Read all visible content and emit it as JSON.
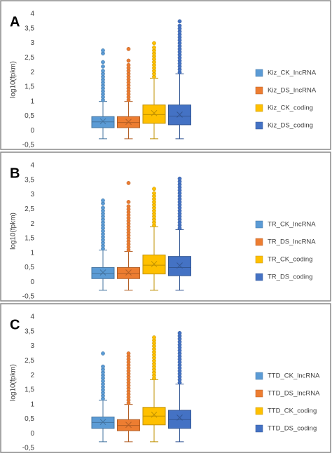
{
  "chart_data": [
    {
      "type": "box",
      "label": "A",
      "y_label": "log10(fpkm)",
      "ylim": [
        -0.5,
        4
      ],
      "yticks": [
        {
          "value": -0.5,
          "label": "-0,5"
        },
        0,
        {
          "value": 0.5,
          "label": "0,5"
        },
        1,
        {
          "value": 1.5,
          "label": "1,5"
        },
        2,
        {
          "value": 2.5,
          "label": "2,5"
        },
        3,
        {
          "value": 3.5,
          "label": "3,5"
        },
        4
      ],
      "grid": false,
      "legend": "right",
      "series": [
        {
          "name": "Kiz_CK_lncRNA",
          "color": "#5b9bd5",
          "min": -0.28,
          "q1": 0.1,
          "median": 0.3,
          "q3": 0.48,
          "max": 1.0,
          "mean": 0.32,
          "outliers": [
            1.05,
            1.15,
            1.25,
            1.35,
            1.45,
            1.55,
            1.65,
            1.75,
            1.85,
            1.95,
            2.05,
            2.2,
            2.35,
            2.65,
            2.75
          ]
        },
        {
          "name": "Kiz_DS_lncRNA",
          "color": "#ed7d31",
          "min": -0.28,
          "q1": 0.1,
          "median": 0.28,
          "q3": 0.48,
          "max": 1.0,
          "mean": 0.3,
          "outliers": [
            1.05,
            1.15,
            1.25,
            1.35,
            1.45,
            1.55,
            1.65,
            1.75,
            1.85,
            1.95,
            2.05,
            2.15,
            2.25,
            2.4,
            2.8
          ]
        },
        {
          "name": "Kiz_CK_coding",
          "color": "#ffc000",
          "min": -0.28,
          "q1": 0.25,
          "median": 0.55,
          "q3": 0.88,
          "max": 1.8,
          "mean": 0.6,
          "outliers": [
            1.85,
            1.95,
            2.05,
            2.15,
            2.25,
            2.35,
            2.45,
            2.55,
            2.65,
            2.75,
            2.85,
            3.0
          ]
        },
        {
          "name": "Kiz_DS_coding",
          "color": "#4472c4",
          "min": -0.28,
          "q1": 0.2,
          "median": 0.5,
          "q3": 0.88,
          "max": 1.95,
          "mean": 0.55,
          "outliers": [
            2.0,
            2.1,
            2.2,
            2.3,
            2.4,
            2.5,
            2.6,
            2.7,
            2.8,
            2.9,
            3.0,
            3.1,
            3.2,
            3.3,
            3.4,
            3.5,
            3.6,
            3.75
          ]
        }
      ]
    },
    {
      "type": "box",
      "label": "B",
      "y_label": "log10(fpkm)",
      "ylim": [
        -0.5,
        4
      ],
      "yticks": [
        {
          "value": -0.5,
          "label": "-0,5"
        },
        0,
        {
          "value": 0.5,
          "label": "0,5"
        },
        1,
        {
          "value": 1.5,
          "label": "1,5"
        },
        2,
        {
          "value": 2.5,
          "label": "2,5"
        },
        3,
        {
          "value": 3.5,
          "label": "3,5"
        },
        4
      ],
      "grid": false,
      "legend": "right",
      "series": [
        {
          "name": "TR_CK_lncRNA",
          "color": "#5b9bd5",
          "min": -0.28,
          "q1": 0.12,
          "median": 0.3,
          "q3": 0.5,
          "max": 1.1,
          "mean": 0.33,
          "outliers": [
            1.15,
            1.25,
            1.35,
            1.45,
            1.55,
            1.65,
            1.75,
            1.85,
            1.95,
            2.05,
            2.15,
            2.25,
            2.35,
            2.45,
            2.55,
            2.7,
            2.8
          ]
        },
        {
          "name": "TR_DS_lncRNA",
          "color": "#ed7d31",
          "min": -0.28,
          "q1": 0.12,
          "median": 0.3,
          "q3": 0.5,
          "max": 1.05,
          "mean": 0.33,
          "outliers": [
            1.1,
            1.2,
            1.3,
            1.4,
            1.5,
            1.6,
            1.7,
            1.8,
            1.9,
            2.0,
            2.1,
            2.2,
            2.3,
            2.4,
            2.5,
            2.6,
            2.75,
            3.4
          ]
        },
        {
          "name": "TR_CK_coding",
          "color": "#ffc000",
          "min": -0.28,
          "q1": 0.28,
          "median": 0.58,
          "q3": 0.93,
          "max": 1.9,
          "mean": 0.62,
          "outliers": [
            1.95,
            2.05,
            2.15,
            2.25,
            2.35,
            2.45,
            2.55,
            2.65,
            2.75,
            2.85,
            2.95,
            3.05,
            3.2
          ]
        },
        {
          "name": "TR_DS_coding",
          "color": "#4472c4",
          "min": -0.28,
          "q1": 0.22,
          "median": 0.5,
          "q3": 0.88,
          "max": 1.8,
          "mean": 0.57,
          "outliers": [
            1.85,
            1.95,
            2.05,
            2.15,
            2.25,
            2.35,
            2.45,
            2.55,
            2.65,
            2.75,
            2.85,
            2.95,
            3.05,
            3.15,
            3.25,
            3.35,
            3.45,
            3.55
          ]
        }
      ]
    },
    {
      "type": "box",
      "label": "C",
      "y_label": "log10(fpkm)",
      "ylim": [
        -0.5,
        4
      ],
      "yticks": [
        {
          "value": -0.5,
          "label": "-0,5"
        },
        0,
        {
          "value": 0.5,
          "label": "0,5"
        },
        1,
        {
          "value": 1.5,
          "label": "1,5"
        },
        2,
        {
          "value": 2.5,
          "label": "2,5"
        },
        3,
        {
          "value": 3.5,
          "label": "3,5"
        },
        4
      ],
      "grid": false,
      "legend": "right",
      "series": [
        {
          "name": "TTD_CK_lncRNA",
          "color": "#5b9bd5",
          "min": -0.28,
          "q1": 0.18,
          "median": 0.38,
          "q3": 0.57,
          "max": 1.15,
          "mean": 0.4,
          "outliers": [
            1.2,
            1.3,
            1.4,
            1.5,
            1.6,
            1.7,
            1.8,
            1.9,
            2.0,
            2.1,
            2.2,
            2.3,
            2.75
          ]
        },
        {
          "name": "TTD_DS_lncRNA",
          "color": "#ed7d31",
          "min": -0.28,
          "q1": 0.1,
          "median": 0.28,
          "q3": 0.48,
          "max": 1.0,
          "mean": 0.3,
          "outliers": [
            1.05,
            1.15,
            1.25,
            1.35,
            1.45,
            1.55,
            1.65,
            1.75,
            1.85,
            1.95,
            2.05,
            2.15,
            2.25,
            2.35,
            2.45,
            2.55,
            2.65,
            2.75
          ]
        },
        {
          "name": "TTD_CK_coding",
          "color": "#ffc000",
          "min": -0.28,
          "q1": 0.3,
          "median": 0.6,
          "q3": 0.9,
          "max": 1.85,
          "mean": 0.65,
          "outliers": [
            1.9,
            2.0,
            2.1,
            2.2,
            2.3,
            2.4,
            2.5,
            2.6,
            2.7,
            2.8,
            2.9,
            3.0,
            3.1,
            3.2,
            3.3
          ]
        },
        {
          "name": "TTD_DS_coding",
          "color": "#4472c4",
          "min": -0.28,
          "q1": 0.18,
          "median": 0.48,
          "q3": 0.8,
          "max": 1.7,
          "mean": 0.55,
          "outliers": [
            1.75,
            1.85,
            1.95,
            2.05,
            2.15,
            2.25,
            2.35,
            2.45,
            2.55,
            2.65,
            2.75,
            2.85,
            2.95,
            3.05,
            3.15,
            3.25,
            3.35,
            3.45
          ]
        }
      ]
    }
  ]
}
